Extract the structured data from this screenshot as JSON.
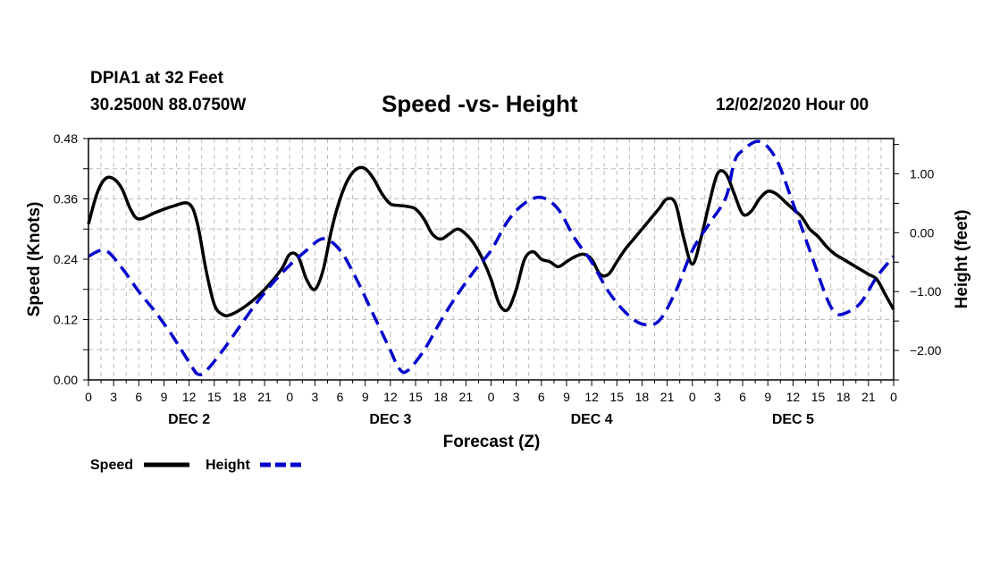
{
  "header": {
    "station": "DPIA1 at 32 Feet",
    "coords": "30.2500N 88.0750W",
    "date": "12/02/2020 Hour 00"
  },
  "chart_data": {
    "type": "line",
    "title": "Speed -vs- Height",
    "xlabel": "Forecast (Z)",
    "ylabel": "Speed (Knots)",
    "y2label": "Height (feet)",
    "grid": true,
    "xlim": [
      0,
      96
    ],
    "ylim": [
      0,
      0.48
    ],
    "y2lim": [
      -2.5,
      1.6
    ],
    "hour_tick_labels": [
      "0",
      "3",
      "6",
      "9",
      "12",
      "15",
      "18",
      "21",
      "0",
      "3",
      "6",
      "9",
      "12",
      "15",
      "18",
      "21",
      "0",
      "3",
      "6",
      "9",
      "12",
      "15",
      "18",
      "21",
      "0",
      "3",
      "6",
      "9",
      "12",
      "15",
      "18",
      "21",
      "0"
    ],
    "day_labels": [
      {
        "label": "DEC 2",
        "x": 12
      },
      {
        "label": "DEC 3",
        "x": 36
      },
      {
        "label": "DEC 4",
        "x": 60
      },
      {
        "label": "DEC 5",
        "x": 84
      }
    ],
    "y_ticks": [
      "0.00",
      "0.12",
      "0.24",
      "0.36",
      "0.48"
    ],
    "y2_ticks": [
      "1.00",
      "0.00",
      "−1.00",
      "−2.00"
    ],
    "legend": [
      "Speed",
      "Height"
    ],
    "series": [
      {
        "name": "Speed",
        "color": "#000000",
        "style": "solid",
        "axis": "left",
        "x": [
          0,
          1,
          2,
          3,
          4,
          5,
          6,
          8,
          10,
          12,
          13,
          14,
          15,
          16,
          17,
          19,
          21,
          23,
          24,
          25,
          26,
          27,
          28,
          29,
          30,
          31,
          32,
          33,
          34,
          35,
          36,
          37,
          38,
          39,
          40,
          41,
          42,
          43,
          44,
          45,
          46,
          47,
          48,
          49,
          50,
          51,
          52,
          53,
          54,
          55,
          56,
          57,
          58,
          59,
          60,
          61,
          62,
          63,
          64,
          65,
          66,
          67,
          68,
          69,
          70,
          71,
          72,
          73,
          74,
          75,
          76,
          77,
          78,
          79,
          80,
          81,
          82,
          83,
          84,
          85,
          86,
          87,
          88,
          89,
          90,
          91,
          92,
          93,
          94,
          95,
          96
        ],
        "values": [
          0.31,
          0.37,
          0.4,
          0.4,
          0.38,
          0.34,
          0.32,
          0.333,
          0.345,
          0.35,
          0.31,
          0.22,
          0.15,
          0.13,
          0.13,
          0.15,
          0.18,
          0.22,
          0.25,
          0.245,
          0.2,
          0.18,
          0.22,
          0.3,
          0.36,
          0.4,
          0.42,
          0.42,
          0.4,
          0.37,
          0.35,
          0.347,
          0.345,
          0.34,
          0.32,
          0.29,
          0.28,
          0.29,
          0.3,
          0.29,
          0.27,
          0.24,
          0.2,
          0.15,
          0.14,
          0.18,
          0.24,
          0.255,
          0.24,
          0.235,
          0.225,
          0.235,
          0.245,
          0.25,
          0.24,
          0.21,
          0.21,
          0.235,
          0.26,
          0.28,
          0.3,
          0.32,
          0.34,
          0.36,
          0.35,
          0.28,
          0.23,
          0.28,
          0.35,
          0.41,
          0.41,
          0.37,
          0.33,
          0.335,
          0.36,
          0.375,
          0.37,
          0.355,
          0.34,
          0.325,
          0.3,
          0.285,
          0.265,
          0.25,
          0.24,
          0.23,
          0.22,
          0.21,
          0.2,
          0.17,
          0.14
        ]
      },
      {
        "name": "Height",
        "color": "#0000cc",
        "style": "dashed",
        "axis": "right",
        "x": [
          0,
          2,
          4,
          6,
          8,
          10,
          12,
          13,
          14,
          16,
          18,
          20,
          22,
          24,
          26,
          28,
          30,
          32,
          34,
          36,
          37,
          38,
          40,
          42,
          44,
          46,
          48,
          50,
          52,
          54,
          56,
          58,
          60,
          62,
          64,
          66,
          68,
          70,
          72,
          74,
          76,
          77,
          78,
          80,
          82,
          84,
          86,
          88,
          89,
          90,
          92,
          94,
          96
        ],
        "values": [
          -0.4,
          -0.3,
          -0.6,
          -1.0,
          -1.35,
          -1.75,
          -2.2,
          -2.4,
          -2.35,
          -2.0,
          -1.6,
          -1.2,
          -0.85,
          -0.55,
          -0.3,
          -0.1,
          -0.3,
          -0.8,
          -1.4,
          -2.0,
          -2.3,
          -2.35,
          -2.0,
          -1.5,
          -1.05,
          -0.65,
          -0.3,
          0.2,
          0.5,
          0.6,
          0.4,
          -0.1,
          -0.5,
          -1.0,
          -1.35,
          -1.55,
          -1.5,
          -1.0,
          -0.3,
          0.15,
          0.6,
          1.2,
          1.4,
          1.55,
          1.25,
          0.5,
          -0.3,
          -1.1,
          -1.35,
          -1.38,
          -1.2,
          -0.75,
          -0.4
        ]
      }
    ]
  }
}
